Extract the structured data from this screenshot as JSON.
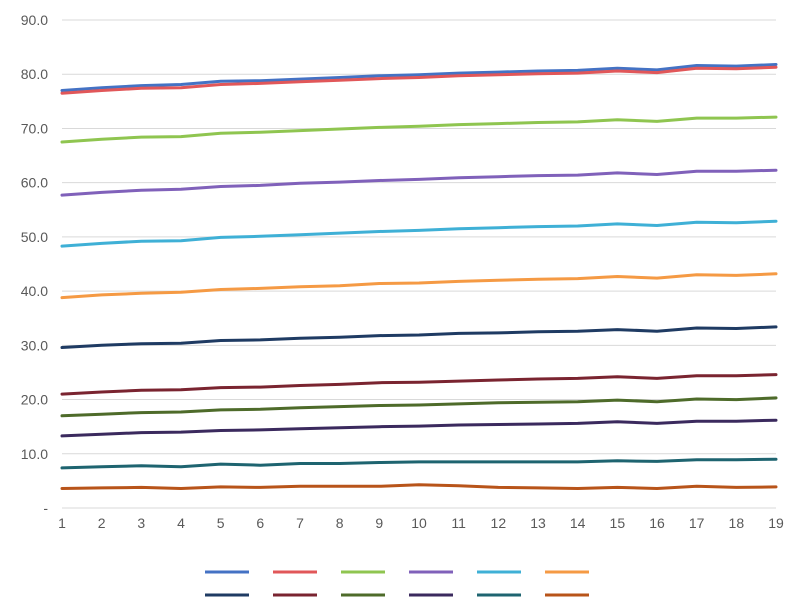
{
  "chart_data": {
    "type": "line",
    "x": [
      1,
      2,
      3,
      4,
      5,
      6,
      7,
      8,
      9,
      10,
      11,
      12,
      13,
      14,
      15,
      16,
      17,
      18,
      19
    ],
    "ylim": [
      0,
      90
    ],
    "y_ticks": [
      0,
      10,
      20,
      30,
      40,
      50,
      60,
      70,
      80,
      90
    ],
    "y_tick_labels": [
      "-",
      "10.0",
      "20.0",
      "30.0",
      "40.0",
      "50.0",
      "60.0",
      "70.0",
      "80.0",
      "90.0"
    ],
    "grid": true,
    "legend_position": "bottom",
    "series": [
      {
        "color": "#4472C4",
        "values": [
          77.0,
          77.5,
          77.9,
          78.1,
          78.7,
          78.8,
          79.1,
          79.4,
          79.7,
          79.9,
          80.2,
          80.4,
          80.6,
          80.7,
          81.1,
          80.8,
          81.6,
          81.5,
          81.8
        ]
      },
      {
        "color": "#E15759",
        "values": [
          76.5,
          77.0,
          77.4,
          77.5,
          78.1,
          78.3,
          78.6,
          78.9,
          79.2,
          79.4,
          79.7,
          79.9,
          80.1,
          80.2,
          80.6,
          80.3,
          81.1,
          81.0,
          81.3
        ]
      },
      {
        "color": "#8FC550",
        "values": [
          67.5,
          68.0,
          68.4,
          68.5,
          69.1,
          69.3,
          69.6,
          69.9,
          70.2,
          70.4,
          70.7,
          70.9,
          71.1,
          71.2,
          71.6,
          71.3,
          71.9,
          71.9,
          72.1
        ]
      },
      {
        "color": "#8061BA",
        "values": [
          57.7,
          58.2,
          58.6,
          58.8,
          59.3,
          59.5,
          59.9,
          60.1,
          60.4,
          60.6,
          60.9,
          61.1,
          61.3,
          61.4,
          61.8,
          61.5,
          62.1,
          62.1,
          62.3
        ]
      },
      {
        "color": "#3FB0D6",
        "values": [
          48.3,
          48.8,
          49.2,
          49.3,
          49.9,
          50.1,
          50.4,
          50.7,
          51.0,
          51.2,
          51.5,
          51.7,
          51.9,
          52.0,
          52.4,
          52.1,
          52.7,
          52.6,
          52.9
        ]
      },
      {
        "color": "#F59A44",
        "values": [
          38.8,
          39.3,
          39.6,
          39.8,
          40.3,
          40.5,
          40.8,
          41.0,
          41.4,
          41.5,
          41.8,
          42.0,
          42.2,
          42.3,
          42.7,
          42.4,
          43.0,
          42.9,
          43.2
        ]
      },
      {
        "color": "#1F3B63",
        "values": [
          29.6,
          30.0,
          30.3,
          30.4,
          30.9,
          31.0,
          31.3,
          31.5,
          31.8,
          31.9,
          32.2,
          32.3,
          32.5,
          32.6,
          32.9,
          32.6,
          33.2,
          33.1,
          33.4
        ]
      },
      {
        "color": "#7A2430",
        "values": [
          21.0,
          21.4,
          21.7,
          21.8,
          22.2,
          22.3,
          22.6,
          22.8,
          23.1,
          23.2,
          23.4,
          23.6,
          23.8,
          23.9,
          24.2,
          23.9,
          24.4,
          24.4,
          24.6
        ]
      },
      {
        "color": "#4E6B2A",
        "values": [
          17.0,
          17.3,
          17.6,
          17.7,
          18.1,
          18.2,
          18.5,
          18.7,
          18.9,
          19.0,
          19.2,
          19.4,
          19.5,
          19.6,
          19.9,
          19.6,
          20.1,
          20.0,
          20.3
        ]
      },
      {
        "color": "#3B2A5E",
        "values": [
          13.3,
          13.6,
          13.9,
          14.0,
          14.3,
          14.4,
          14.6,
          14.8,
          15.0,
          15.1,
          15.3,
          15.4,
          15.5,
          15.6,
          15.9,
          15.6,
          16.0,
          16.0,
          16.2
        ]
      },
      {
        "color": "#1E6470",
        "values": [
          7.4,
          7.6,
          7.8,
          7.6,
          8.1,
          7.9,
          8.2,
          8.2,
          8.4,
          8.5,
          8.5,
          8.5,
          8.5,
          8.5,
          8.7,
          8.6,
          8.9,
          8.9,
          9.0
        ]
      },
      {
        "color": "#B8541A",
        "values": [
          3.6,
          3.7,
          3.8,
          3.6,
          3.9,
          3.8,
          4.0,
          4.0,
          4.0,
          4.3,
          4.1,
          3.8,
          3.7,
          3.6,
          3.8,
          3.6,
          4.0,
          3.8,
          3.9
        ]
      }
    ]
  }
}
